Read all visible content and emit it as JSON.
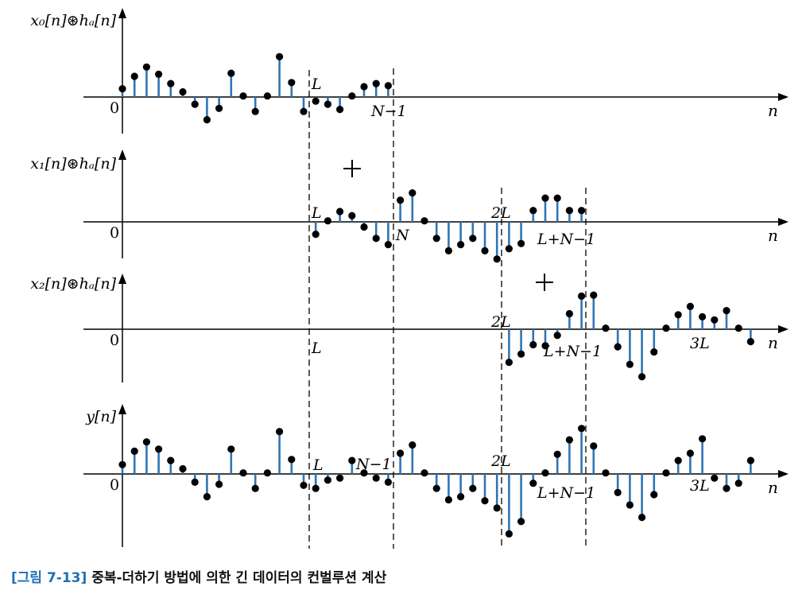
{
  "figure": {
    "colors": {
      "stem": "#2E75B6",
      "dot": "#000000",
      "axis": "#000000"
    },
    "markers": [
      "L",
      "N",
      "2L",
      "L+N−1"
    ],
    "panels": [
      {
        "ylabel": "x₀[n]⊛hₐ[n]",
        "origin_label": "0",
        "xaxis_label": "n",
        "annotations": [
          "L",
          "N−1"
        ],
        "plus": false,
        "samples": [
          {
            "n": 0,
            "v": 0.8
          },
          {
            "n": 1,
            "v": 2.0
          },
          {
            "n": 2,
            "v": 2.9
          },
          {
            "n": 3,
            "v": 2.2
          },
          {
            "n": 4,
            "v": 1.3
          },
          {
            "n": 5,
            "v": 0.5
          },
          {
            "n": 6,
            "v": -0.7
          },
          {
            "n": 7,
            "v": -2.2
          },
          {
            "n": 8,
            "v": -1.1
          },
          {
            "n": 9,
            "v": 2.3
          },
          {
            "n": 10,
            "v": 0.1
          },
          {
            "n": 11,
            "v": -1.4
          },
          {
            "n": 12,
            "v": 0.1
          },
          {
            "n": 13,
            "v": 3.9
          },
          {
            "n": 14,
            "v": 1.4
          },
          {
            "n": 15,
            "v": -1.4
          },
          {
            "n": 16,
            "v": -0.4
          },
          {
            "n": 17,
            "v": -0.7
          },
          {
            "n": 18,
            "v": -1.2
          },
          {
            "n": 19,
            "v": 0.1
          },
          {
            "n": 20,
            "v": 1.0
          },
          {
            "n": 21,
            "v": 1.3
          },
          {
            "n": 22,
            "v": 1.1
          }
        ]
      },
      {
        "ylabel": "x₁[n]⊛hₐ[n]",
        "origin_label": "0",
        "xaxis_label": "n",
        "annotations": [
          "L",
          "N",
          "2L",
          "L+N−1"
        ],
        "plus": true,
        "samples": [
          {
            "n": 16,
            "v": -1.2
          },
          {
            "n": 17,
            "v": 0.1
          },
          {
            "n": 18,
            "v": 1.0
          },
          {
            "n": 19,
            "v": 0.6
          },
          {
            "n": 20,
            "v": -0.5
          },
          {
            "n": 21,
            "v": -1.6
          },
          {
            "n": 22,
            "v": -2.2
          },
          {
            "n": 23,
            "v": 2.1
          },
          {
            "n": 24,
            "v": 2.8
          },
          {
            "n": 25,
            "v": 0.1
          },
          {
            "n": 26,
            "v": -1.6
          },
          {
            "n": 27,
            "v": -2.8
          },
          {
            "n": 28,
            "v": -2.2
          },
          {
            "n": 29,
            "v": -1.6
          },
          {
            "n": 30,
            "v": -2.8
          },
          {
            "n": 31,
            "v": -3.6
          },
          {
            "n": 32,
            "v": -2.6
          },
          {
            "n": 33,
            "v": -2.1
          },
          {
            "n": 34,
            "v": 1.1
          },
          {
            "n": 35,
            "v": 2.3
          },
          {
            "n": 36,
            "v": 2.3
          },
          {
            "n": 37,
            "v": 1.1
          },
          {
            "n": 38,
            "v": 1.1
          }
        ]
      },
      {
        "ylabel": "x₂[n]⊛hₐ[n]",
        "origin_label": "0",
        "xaxis_label": "n",
        "annotations": [
          "L",
          "2L",
          "L+N−1",
          "3L"
        ],
        "plus": true,
        "samples": [
          {
            "n": 32,
            "v": -3.2
          },
          {
            "n": 33,
            "v": -2.4
          },
          {
            "n": 34,
            "v": -1.5
          },
          {
            "n": 35,
            "v": -1.6
          },
          {
            "n": 36,
            "v": -0.6
          },
          {
            "n": 37,
            "v": 1.5
          },
          {
            "n": 38,
            "v": 3.2
          },
          {
            "n": 39,
            "v": 3.3
          },
          {
            "n": 40,
            "v": 0.1
          },
          {
            "n": 41,
            "v": -1.7
          },
          {
            "n": 42,
            "v": -3.4
          },
          {
            "n": 43,
            "v": -4.6
          },
          {
            "n": 44,
            "v": -2.2
          },
          {
            "n": 45,
            "v": 0.1
          },
          {
            "n": 46,
            "v": 1.4
          },
          {
            "n": 47,
            "v": 2.2
          },
          {
            "n": 48,
            "v": 1.2
          },
          {
            "n": 49,
            "v": 0.9
          },
          {
            "n": 50,
            "v": 1.8
          },
          {
            "n": 51,
            "v": 0.1
          },
          {
            "n": 52,
            "v": -1.2
          }
        ]
      },
      {
        "ylabel": "y[n]",
        "origin_label": "0",
        "xaxis_label": "n",
        "annotations": [
          "L",
          "N−1",
          "2L",
          "L+N−1",
          "3L"
        ],
        "plus": false,
        "samples": [
          {
            "n": 0,
            "v": 0.9
          },
          {
            "n": 1,
            "v": 2.2
          },
          {
            "n": 2,
            "v": 3.1
          },
          {
            "n": 3,
            "v": 2.4
          },
          {
            "n": 4,
            "v": 1.3
          },
          {
            "n": 5,
            "v": 0.5
          },
          {
            "n": 6,
            "v": -0.8
          },
          {
            "n": 7,
            "v": -2.2
          },
          {
            "n": 8,
            "v": -1.0
          },
          {
            "n": 9,
            "v": 2.4
          },
          {
            "n": 10,
            "v": 0.1
          },
          {
            "n": 11,
            "v": -1.4
          },
          {
            "n": 12,
            "v": 0.1
          },
          {
            "n": 13,
            "v": 4.1
          },
          {
            "n": 14,
            "v": 1.4
          },
          {
            "n": 15,
            "v": -1.1
          },
          {
            "n": 16,
            "v": -1.4
          },
          {
            "n": 17,
            "v": -0.6
          },
          {
            "n": 18,
            "v": -0.4
          },
          {
            "n": 19,
            "v": 1.3
          },
          {
            "n": 20,
            "v": 0.1
          },
          {
            "n": 21,
            "v": -0.4
          },
          {
            "n": 22,
            "v": -0.8
          },
          {
            "n": 23,
            "v": 2.0
          },
          {
            "n": 24,
            "v": 2.8
          },
          {
            "n": 25,
            "v": 0.1
          },
          {
            "n": 26,
            "v": -1.4
          },
          {
            "n": 27,
            "v": -2.5
          },
          {
            "n": 28,
            "v": -2.2
          },
          {
            "n": 29,
            "v": -1.4
          },
          {
            "n": 30,
            "v": -2.6
          },
          {
            "n": 31,
            "v": -3.3
          },
          {
            "n": 32,
            "v": -5.8
          },
          {
            "n": 33,
            "v": -4.6
          },
          {
            "n": 34,
            "v": -0.9
          },
          {
            "n": 35,
            "v": 0.1
          },
          {
            "n": 36,
            "v": 1.9
          },
          {
            "n": 37,
            "v": 3.3
          },
          {
            "n": 38,
            "v": 4.4
          },
          {
            "n": 39,
            "v": 2.7
          },
          {
            "n": 40,
            "v": 0.1
          },
          {
            "n": 41,
            "v": -1.8
          },
          {
            "n": 42,
            "v": -3.0
          },
          {
            "n": 43,
            "v": -4.2
          },
          {
            "n": 44,
            "v": -2.0
          },
          {
            "n": 45,
            "v": 0.1
          },
          {
            "n": 46,
            "v": 1.3
          },
          {
            "n": 47,
            "v": 2.0
          },
          {
            "n": 48,
            "v": 3.4
          },
          {
            "n": 49,
            "v": -0.4
          },
          {
            "n": 50,
            "v": -1.4
          },
          {
            "n": 51,
            "v": -0.9
          },
          {
            "n": 52,
            "v": 1.3
          }
        ]
      }
    ]
  },
  "caption": {
    "label": "[그림 7-13]",
    "text": "중복-더하기 방법에 의한 긴 데이터의 컨벌루션 계산"
  }
}
